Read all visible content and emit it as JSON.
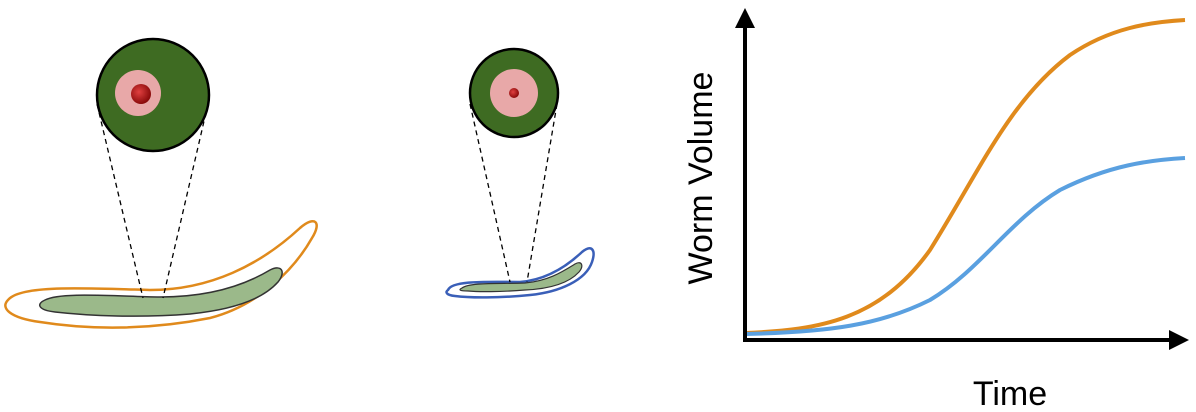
{
  "axes": {
    "y_label": "Worm Volume",
    "x_label": "Time"
  }
}
